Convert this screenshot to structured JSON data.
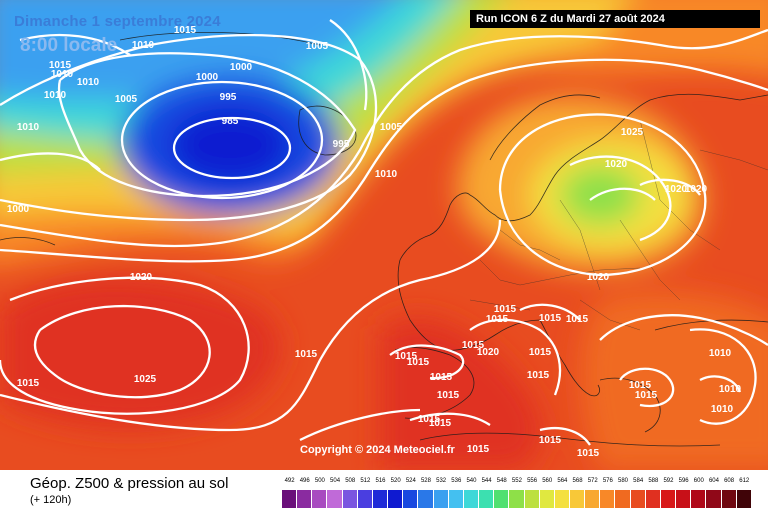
{
  "header": {
    "date": "Dimanche 1 septembre 2024",
    "time": "8:00 locale",
    "run": "Run ICON 6 Z du Mardi 27 août 2024"
  },
  "copyright": "Copyright © 2024 Meteociel.fr",
  "footer": {
    "title": "Géop. Z500 & pression au sol",
    "subtitle": "(+ 120h)"
  },
  "legend": {
    "labels": [
      "492",
      "496",
      "500",
      "504",
      "508",
      "512",
      "516",
      "520",
      "524",
      "528",
      "532",
      "536",
      "540",
      "544",
      "548",
      "552",
      "556",
      "560",
      "564",
      "568",
      "572",
      "576",
      "580",
      "584",
      "588",
      "592",
      "596",
      "600",
      "604",
      "608",
      "612"
    ],
    "colors": [
      "#6a0f7a",
      "#8a2ba0",
      "#a84bc0",
      "#c06ad8",
      "#7a55e0",
      "#4a3ee0",
      "#1f2ad8",
      "#0f1ad0",
      "#1848e0",
      "#2a78e8",
      "#3aa0f0",
      "#44c0f0",
      "#3ed8d8",
      "#3ce0b0",
      "#50e070",
      "#8ee048",
      "#bce040",
      "#e0e840",
      "#f4e040",
      "#f8c838",
      "#f8a830",
      "#f88828",
      "#f06a20",
      "#e84c20",
      "#e03020",
      "#d81818",
      "#c81018",
      "#b00818",
      "#900818",
      "#700810",
      "#400408"
    ]
  },
  "isobars": [
    {
      "text": "1015"
    },
    {
      "text": "1010"
    },
    {
      "text": "1010"
    },
    {
      "text": "1015"
    },
    {
      "text": "1010"
    },
    {
      "text": "1010"
    },
    {
      "text": "1005"
    },
    {
      "text": "1000"
    },
    {
      "text": "1000"
    },
    {
      "text": "1005"
    },
    {
      "text": "995"
    },
    {
      "text": "985"
    },
    {
      "text": "995"
    },
    {
      "text": "1005"
    },
    {
      "text": "1010"
    },
    {
      "text": "1000"
    },
    {
      "text": "1010"
    },
    {
      "text": "1025"
    },
    {
      "text": "1020"
    },
    {
      "text": "1020"
    },
    {
      "text": "1020"
    },
    {
      "text": "1020"
    },
    {
      "text": "1020"
    },
    {
      "text": "1025"
    },
    {
      "text": "1015"
    },
    {
      "text": "1015"
    },
    {
      "text": "1015"
    },
    {
      "text": "1015"
    },
    {
      "text": "1015"
    },
    {
      "text": "1020"
    },
    {
      "text": "1015"
    },
    {
      "text": "1015"
    },
    {
      "text": "1015"
    },
    {
      "text": "1015"
    },
    {
      "text": "1015"
    },
    {
      "text": "1015"
    },
    {
      "text": "1015"
    },
    {
      "text": "1015"
    },
    {
      "text": "1015"
    },
    {
      "text": "1015"
    },
    {
      "text": "1015"
    },
    {
      "text": "1015"
    },
    {
      "text": "1015"
    },
    {
      "text": "1010"
    },
    {
      "text": "1010"
    },
    {
      "text": "1010"
    },
    {
      "text": "1015"
    },
    {
      "text": "1015"
    }
  ]
}
